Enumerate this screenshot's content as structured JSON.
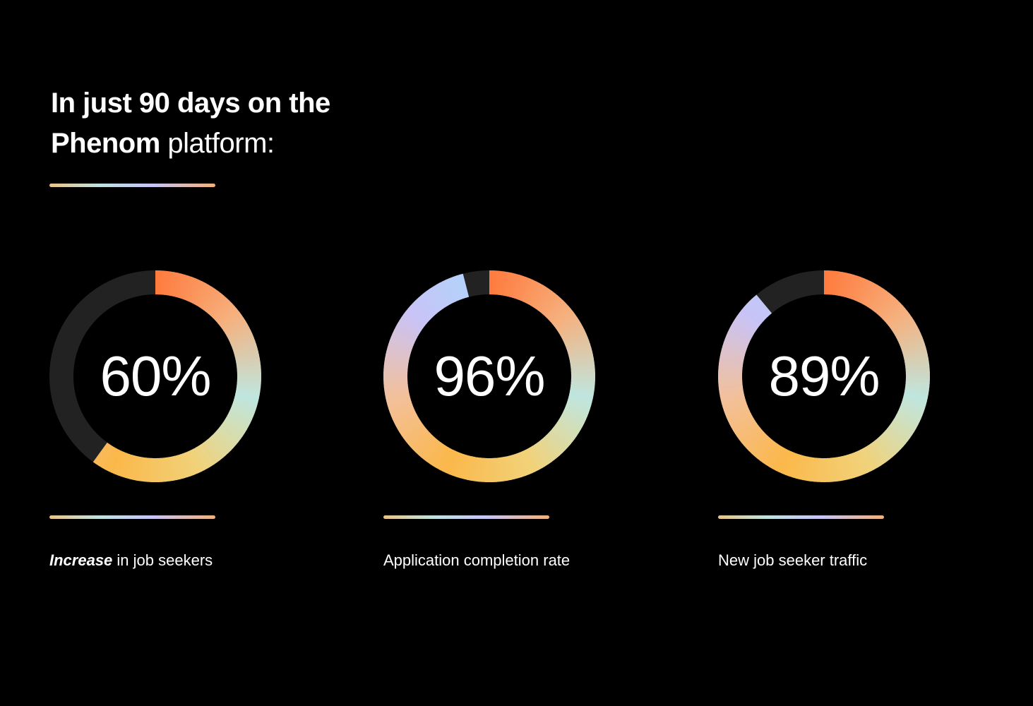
{
  "headline": {
    "line1": "In just 90 days on the",
    "line2_bold": "Phenom",
    "line2_rest": " platform:"
  },
  "colors": {
    "background": "#000000",
    "track": "#222222",
    "gradient": [
      "#ff7a3d",
      "#f6b07d",
      "#bfe6df",
      "#f1d27a",
      "#fbb84a",
      "#f3c09a",
      "#c9c3f6",
      "#acd7fd"
    ]
  },
  "chart_data": {
    "type": "donut",
    "units": "%",
    "max": 100,
    "items": [
      {
        "value": 60,
        "label": "60%",
        "caption_em": "Increase",
        "caption": " in job seekers"
      },
      {
        "value": 96,
        "label": "96%",
        "caption_em": "",
        "caption": "Application completion rate"
      },
      {
        "value": 89,
        "label": "89%",
        "caption_em": "",
        "caption": "New job seeker traffic"
      }
    ]
  }
}
